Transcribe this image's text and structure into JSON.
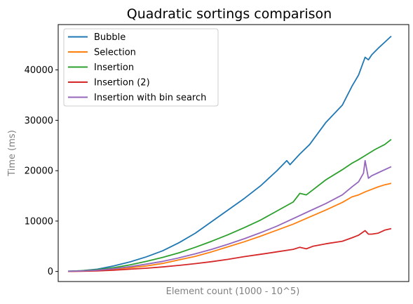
{
  "chart_data": {
    "type": "line",
    "title": "Quadratic sortings comparison",
    "xlabel": "Element count (1000 - 10^5)",
    "ylabel": "Time (ms)",
    "x_ticks_shown": false,
    "xlim": [
      1000,
      100000
    ],
    "ylim": [
      -2000,
      49000
    ],
    "y_ticks": [
      "0",
      "10000",
      "20000",
      "30000",
      "40000"
    ],
    "y_tick_values": [
      0,
      10000,
      20000,
      30000,
      40000
    ],
    "legend_position": "top-left",
    "grid": false,
    "series": [
      {
        "name": "Bubble",
        "color": "#1f77b4",
        "points": [
          [
            1000,
            50
          ],
          [
            5000,
            150
          ],
          [
            10000,
            450
          ],
          [
            15000,
            1100
          ],
          [
            20000,
            1900
          ],
          [
            25000,
            2900
          ],
          [
            30000,
            4100
          ],
          [
            35000,
            5700
          ],
          [
            40000,
            7600
          ],
          [
            45000,
            9900
          ],
          [
            50000,
            12200
          ],
          [
            55000,
            14500
          ],
          [
            60000,
            17000
          ],
          [
            65000,
            20000
          ],
          [
            68000,
            22000
          ],
          [
            69000,
            21200
          ],
          [
            72000,
            23300
          ],
          [
            75000,
            25200
          ],
          [
            80000,
            29600
          ],
          [
            85000,
            33000
          ],
          [
            88000,
            36800
          ],
          [
            90000,
            39000
          ],
          [
            92000,
            42500
          ],
          [
            93000,
            42000
          ],
          [
            94000,
            43000
          ],
          [
            96000,
            44300
          ],
          [
            98000,
            45500
          ],
          [
            100000,
            46700
          ]
        ]
      },
      {
        "name": "Selection",
        "color": "#ff7f0e",
        "points": [
          [
            1000,
            20
          ],
          [
            5000,
            80
          ],
          [
            10000,
            200
          ],
          [
            15000,
            450
          ],
          [
            20000,
            750
          ],
          [
            25000,
            1100
          ],
          [
            30000,
            1600
          ],
          [
            35000,
            2300
          ],
          [
            40000,
            3000
          ],
          [
            45000,
            3900
          ],
          [
            50000,
            4900
          ],
          [
            55000,
            5900
          ],
          [
            60000,
            7000
          ],
          [
            65000,
            8200
          ],
          [
            70000,
            9400
          ],
          [
            75000,
            10800
          ],
          [
            80000,
            12200
          ],
          [
            85000,
            13700
          ],
          [
            88000,
            14800
          ],
          [
            90000,
            15200
          ],
          [
            92000,
            15800
          ],
          [
            94000,
            16300
          ],
          [
            96000,
            16800
          ],
          [
            98000,
            17200
          ],
          [
            100000,
            17500
          ]
        ]
      },
      {
        "name": "Insertion",
        "color": "#2ca02c",
        "points": [
          [
            1000,
            40
          ],
          [
            5000,
            150
          ],
          [
            10000,
            350
          ],
          [
            15000,
            750
          ],
          [
            20000,
            1300
          ],
          [
            25000,
            2000
          ],
          [
            30000,
            2800
          ],
          [
            35000,
            3700
          ],
          [
            40000,
            4800
          ],
          [
            45000,
            6000
          ],
          [
            50000,
            7300
          ],
          [
            55000,
            8700
          ],
          [
            60000,
            10200
          ],
          [
            65000,
            12000
          ],
          [
            70000,
            13800
          ],
          [
            72000,
            15500
          ],
          [
            74000,
            15200
          ],
          [
            76000,
            16200
          ],
          [
            80000,
            18200
          ],
          [
            85000,
            20200
          ],
          [
            88000,
            21500
          ],
          [
            90000,
            22200
          ],
          [
            92000,
            23000
          ],
          [
            95000,
            24200
          ],
          [
            98000,
            25200
          ],
          [
            100000,
            26200
          ]
        ]
      },
      {
        "name": "Insertion (2)",
        "color": "#d62728",
        "points": [
          [
            1000,
            10
          ],
          [
            5000,
            40
          ],
          [
            10000,
            100
          ],
          [
            15000,
            250
          ],
          [
            20000,
            450
          ],
          [
            25000,
            650
          ],
          [
            30000,
            900
          ],
          [
            35000,
            1200
          ],
          [
            40000,
            1550
          ],
          [
            45000,
            1950
          ],
          [
            50000,
            2400
          ],
          [
            55000,
            2950
          ],
          [
            60000,
            3400
          ],
          [
            65000,
            3900
          ],
          [
            70000,
            4400
          ],
          [
            72000,
            4800
          ],
          [
            74000,
            4500
          ],
          [
            76000,
            5000
          ],
          [
            80000,
            5500
          ],
          [
            85000,
            6000
          ],
          [
            88000,
            6700
          ],
          [
            90000,
            7200
          ],
          [
            92000,
            8100
          ],
          [
            93000,
            7400
          ],
          [
            94000,
            7400
          ],
          [
            96000,
            7600
          ],
          [
            98000,
            8200
          ],
          [
            100000,
            8500
          ]
        ]
      },
      {
        "name": "Insertion with bin search",
        "color": "#9467bd",
        "points": [
          [
            1000,
            30
          ],
          [
            5000,
            100
          ],
          [
            10000,
            250
          ],
          [
            15000,
            550
          ],
          [
            20000,
            950
          ],
          [
            25000,
            1450
          ],
          [
            30000,
            2000
          ],
          [
            35000,
            2700
          ],
          [
            40000,
            3500
          ],
          [
            45000,
            4400
          ],
          [
            50000,
            5400
          ],
          [
            55000,
            6500
          ],
          [
            60000,
            7700
          ],
          [
            65000,
            9000
          ],
          [
            70000,
            10500
          ],
          [
            75000,
            12000
          ],
          [
            80000,
            13500
          ],
          [
            85000,
            15200
          ],
          [
            88000,
            16800
          ],
          [
            90000,
            17800
          ],
          [
            91500,
            19500
          ],
          [
            92000,
            22000
          ],
          [
            93000,
            18500
          ],
          [
            94000,
            19000
          ],
          [
            96000,
            19600
          ],
          [
            98000,
            20200
          ],
          [
            100000,
            20800
          ]
        ]
      }
    ]
  }
}
